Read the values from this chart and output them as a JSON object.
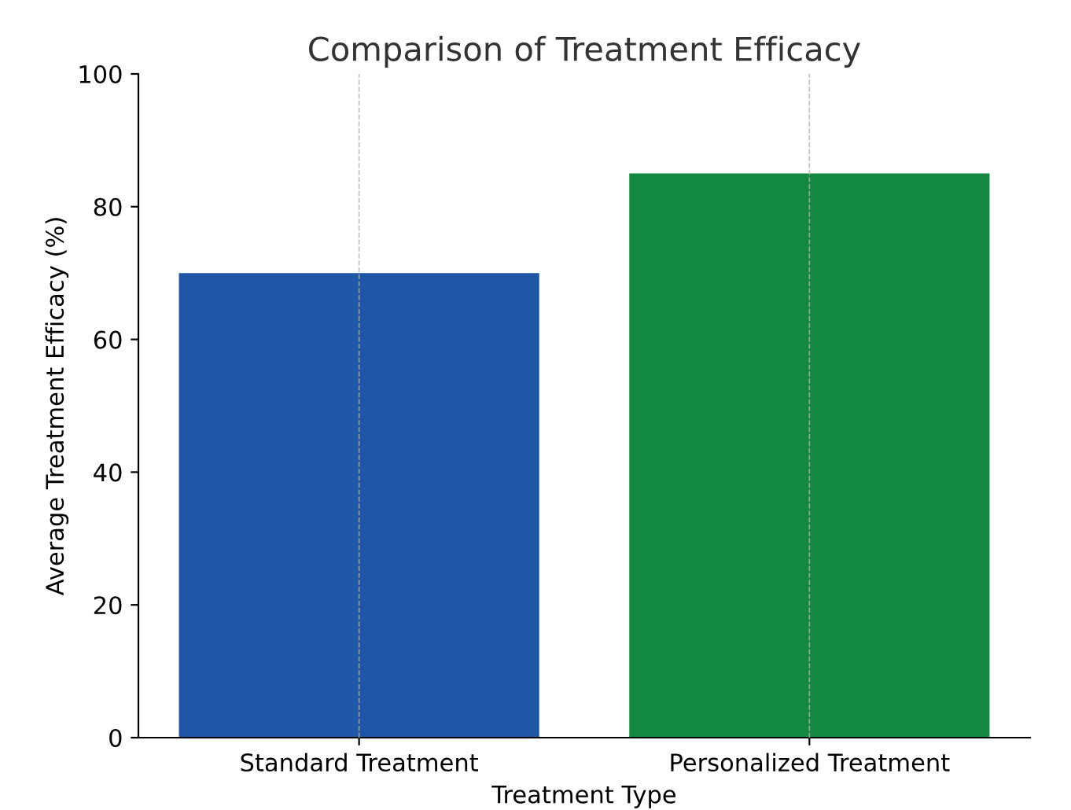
{
  "chart_data": {
    "type": "bar",
    "title": "Comparison of Treatment Efficacy",
    "xlabel": "Treatment Type",
    "ylabel": "Average Treatment Efficacy (%)",
    "categories": [
      "Standard Treatment",
      "Personalized Treatment"
    ],
    "values": [
      70,
      85
    ],
    "colors": [
      "#1f57a6",
      "#138841"
    ],
    "ylim": [
      0,
      100
    ],
    "yticks": [
      0,
      20,
      40,
      60,
      80,
      100
    ],
    "grid": "x"
  }
}
